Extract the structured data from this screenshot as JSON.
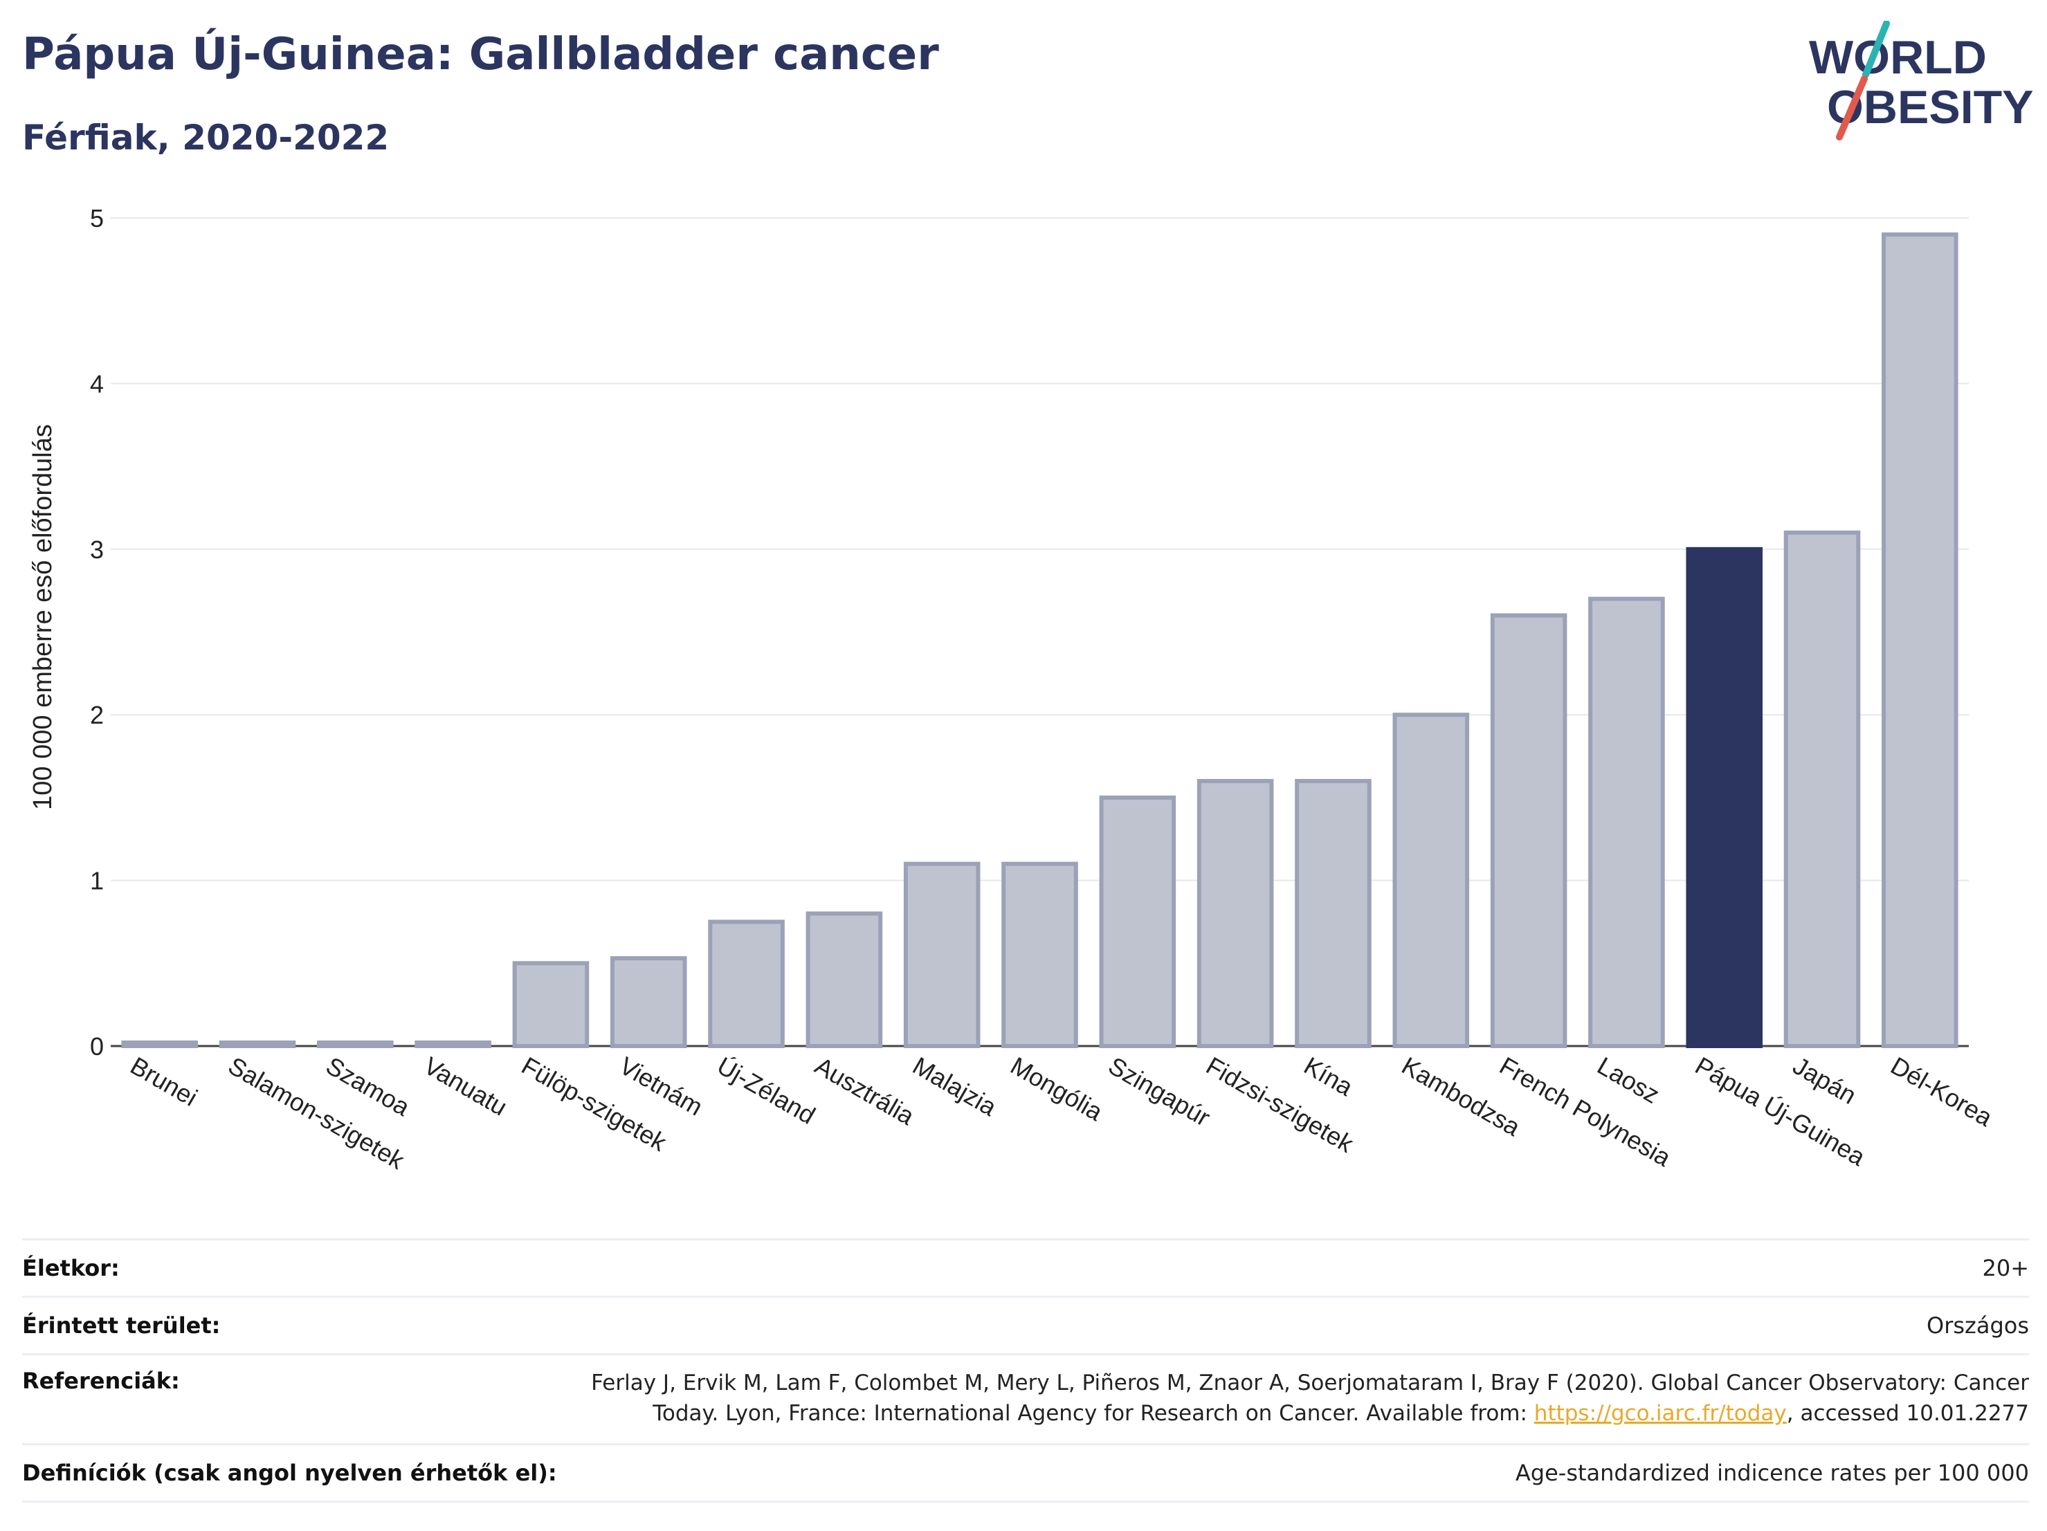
{
  "header": {
    "title": "Pápua Új-Guinea: Gallbladder cancer",
    "subtitle": "Férfiak, 2020-2022"
  },
  "logo": {
    "line1": "WORLD",
    "line2": "OBESITY"
  },
  "colors": {
    "bar": "#bfc3d0",
    "bar_border": "#9ba2b8",
    "highlight": "#2b3560",
    "title": "#2b3560",
    "link": "#e8a92a"
  },
  "chart_data": {
    "type": "bar",
    "ylabel": "100 000 emberre eső előfordulás",
    "ylim": [
      0,
      5
    ],
    "yticks": [
      0,
      1,
      2,
      3,
      4,
      5
    ],
    "grid": true,
    "categories": [
      "Brunei",
      "Salamon-szigetek",
      "Szamoa",
      "Vanuatu",
      "Fülöp-szigetek",
      "Vietnám",
      "Új-Zéland",
      "Ausztrália",
      "Malajzia",
      "Mongólia",
      "Szingapúr",
      "Fidzsi-szigetek",
      "Kína",
      "Kambodzsa",
      "French Polynesia",
      "Laosz",
      "Pápua Új-Guinea",
      "Japán",
      "Dél-Korea"
    ],
    "values": [
      0.0,
      0.0,
      0.0,
      0.0,
      0.5,
      0.53,
      0.75,
      0.8,
      1.1,
      1.1,
      1.5,
      1.6,
      1.6,
      2.0,
      2.6,
      2.7,
      3.0,
      3.1,
      4.9
    ],
    "highlight": "Pápua Új-Guinea"
  },
  "meta": {
    "age_label": "Életkor:",
    "age_value": "20+",
    "area_label": "Érintett terület:",
    "area_value": "Országos",
    "ref_label": "Referenciák:",
    "ref_text_1": "Ferlay J, Ervik M, Lam F, Colombet M, Mery L, Piñeros M, Znaor A, Soerjomataram I, Bray F (2020). Global Cancer Observatory: Cancer",
    "ref_text_2": "Today. Lyon, France: International Agency for Research on Cancer. Available from: ",
    "ref_link": "https://gco.iarc.fr/today",
    "ref_text_3": ", accessed 10.01.2277",
    "def_label": "Definíciók (csak angol nyelven érhetők el):",
    "def_value": "Age-standardized indicence rates per 100 000"
  }
}
